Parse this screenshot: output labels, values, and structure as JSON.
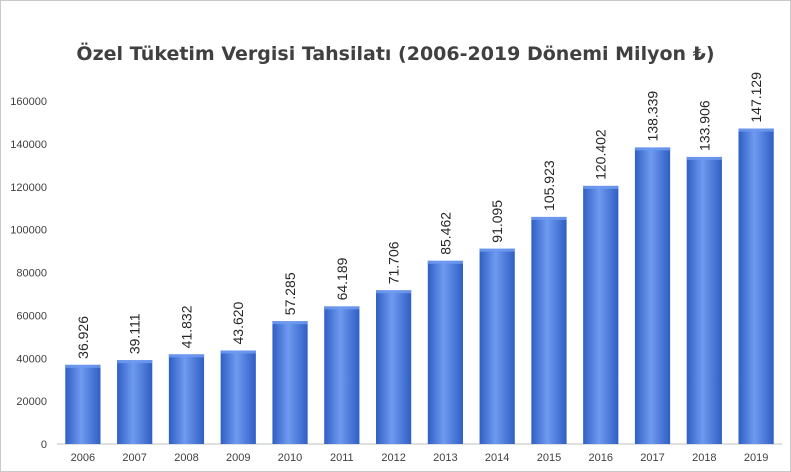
{
  "chart_data": {
    "type": "bar",
    "title": "Özel Tüketim Vergisi Tahsilatı  (2006-2019 Dönemi Milyon ₺)",
    "categories": [
      "2006",
      "2007",
      "2008",
      "2009",
      "2010",
      "2011",
      "2012",
      "2013",
      "2014",
      "2015",
      "2016",
      "2017",
      "2018",
      "2019"
    ],
    "values": [
      36926,
      39111,
      41832,
      43620,
      57285,
      64189,
      71706,
      85462,
      91095,
      105923,
      120402,
      138339,
      133906,
      147129
    ],
    "data_labels": [
      "36.926",
      "39.111",
      "41.832",
      "43.620",
      "57.285",
      "64.189",
      "71.706",
      "85.462",
      "91.095",
      "105.923",
      "120.402",
      "138.339",
      "133.906",
      "147.129"
    ],
    "xlabel": "",
    "ylabel": "",
    "ylim": [
      0,
      160000
    ],
    "yticks": [
      0,
      20000,
      40000,
      60000,
      80000,
      100000,
      120000,
      140000,
      160000
    ],
    "ytick_labels": [
      "0",
      "20000",
      "40000",
      "60000",
      "80000",
      "100000",
      "120000",
      "140000",
      "160000"
    ],
    "grid": false,
    "legend": "none",
    "bar_color": "#2f5fc4",
    "bar_highlight": "#6f9af0"
  }
}
